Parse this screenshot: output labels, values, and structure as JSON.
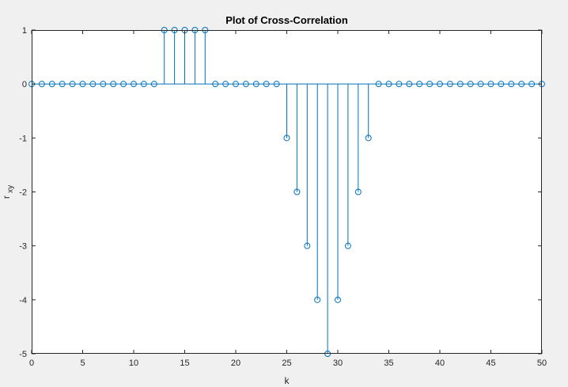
{
  "chart_data": {
    "type": "stem",
    "title": "Plot of Cross-Correlation",
    "xlabel": "k",
    "ylabel_main": "r",
    "ylabel_sub": "xy",
    "xlim": [
      0,
      50
    ],
    "ylim": [
      -5,
      1
    ],
    "xticks": [
      0,
      5,
      10,
      15,
      20,
      25,
      30,
      35,
      40,
      45,
      50
    ],
    "yticks": [
      -5,
      -4,
      -3,
      -2,
      -1,
      0,
      1
    ],
    "grid": false,
    "series_color": "#0072bd",
    "axes_color": "#262626",
    "plot_background": "#ffffff",
    "x": [
      0,
      1,
      2,
      3,
      4,
      5,
      6,
      7,
      8,
      9,
      10,
      11,
      12,
      13,
      14,
      15,
      16,
      17,
      18,
      19,
      20,
      21,
      22,
      23,
      24,
      25,
      26,
      27,
      28,
      29,
      30,
      31,
      32,
      33,
      34,
      35,
      36,
      37,
      38,
      39,
      40,
      41,
      42,
      43,
      44,
      45,
      46,
      47,
      48,
      49,
      50
    ],
    "values": [
      0,
      0,
      0,
      0,
      0,
      0,
      0,
      0,
      0,
      0,
      0,
      0,
      0,
      1,
      1,
      1,
      1,
      1,
      0,
      0,
      0,
      0,
      0,
      0,
      0,
      -1,
      -2,
      -3,
      -4,
      -5,
      -4,
      -3,
      -2,
      -1,
      0,
      0,
      0,
      0,
      0,
      0,
      0,
      0,
      0,
      0,
      0,
      0,
      0,
      0,
      0,
      0,
      0
    ]
  }
}
